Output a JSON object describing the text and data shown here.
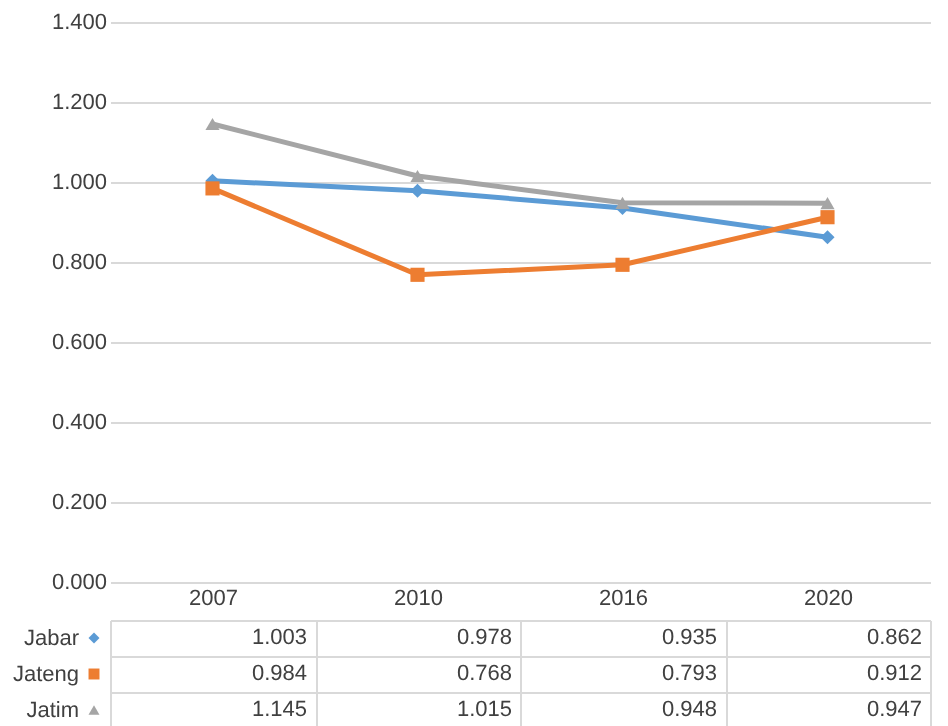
{
  "chart_data": {
    "type": "line",
    "categories": [
      "2007",
      "2010",
      "2016",
      "2020"
    ],
    "series": [
      {
        "name": "Jabar",
        "color": "#5b9bd5",
        "marker": "diamond",
        "values": [
          1.003,
          0.978,
          0.935,
          0.862
        ]
      },
      {
        "name": "Jateng",
        "color": "#ed7d31",
        "marker": "square",
        "values": [
          0.984,
          0.768,
          0.793,
          0.912
        ]
      },
      {
        "name": "Jatim",
        "color": "#a5a5a5",
        "marker": "triangle",
        "values": [
          1.145,
          1.015,
          0.948,
          0.947
        ]
      }
    ],
    "ylim": [
      0,
      1.4
    ],
    "yticks": [
      {
        "value": 0,
        "label": "0.000"
      },
      {
        "value": 0.2,
        "label": "0.200"
      },
      {
        "value": 0.4,
        "label": "0.400"
      },
      {
        "value": 0.6,
        "label": "0.600"
      },
      {
        "value": 0.8,
        "label": "0.800"
      },
      {
        "value": 1.0,
        "label": "1.000"
      },
      {
        "value": 1.2,
        "label": "1.200"
      },
      {
        "value": 1.4,
        "label": "1.400"
      }
    ],
    "grid": "y",
    "legend": "bottom",
    "data_labels": true,
    "line_style": "solid"
  }
}
